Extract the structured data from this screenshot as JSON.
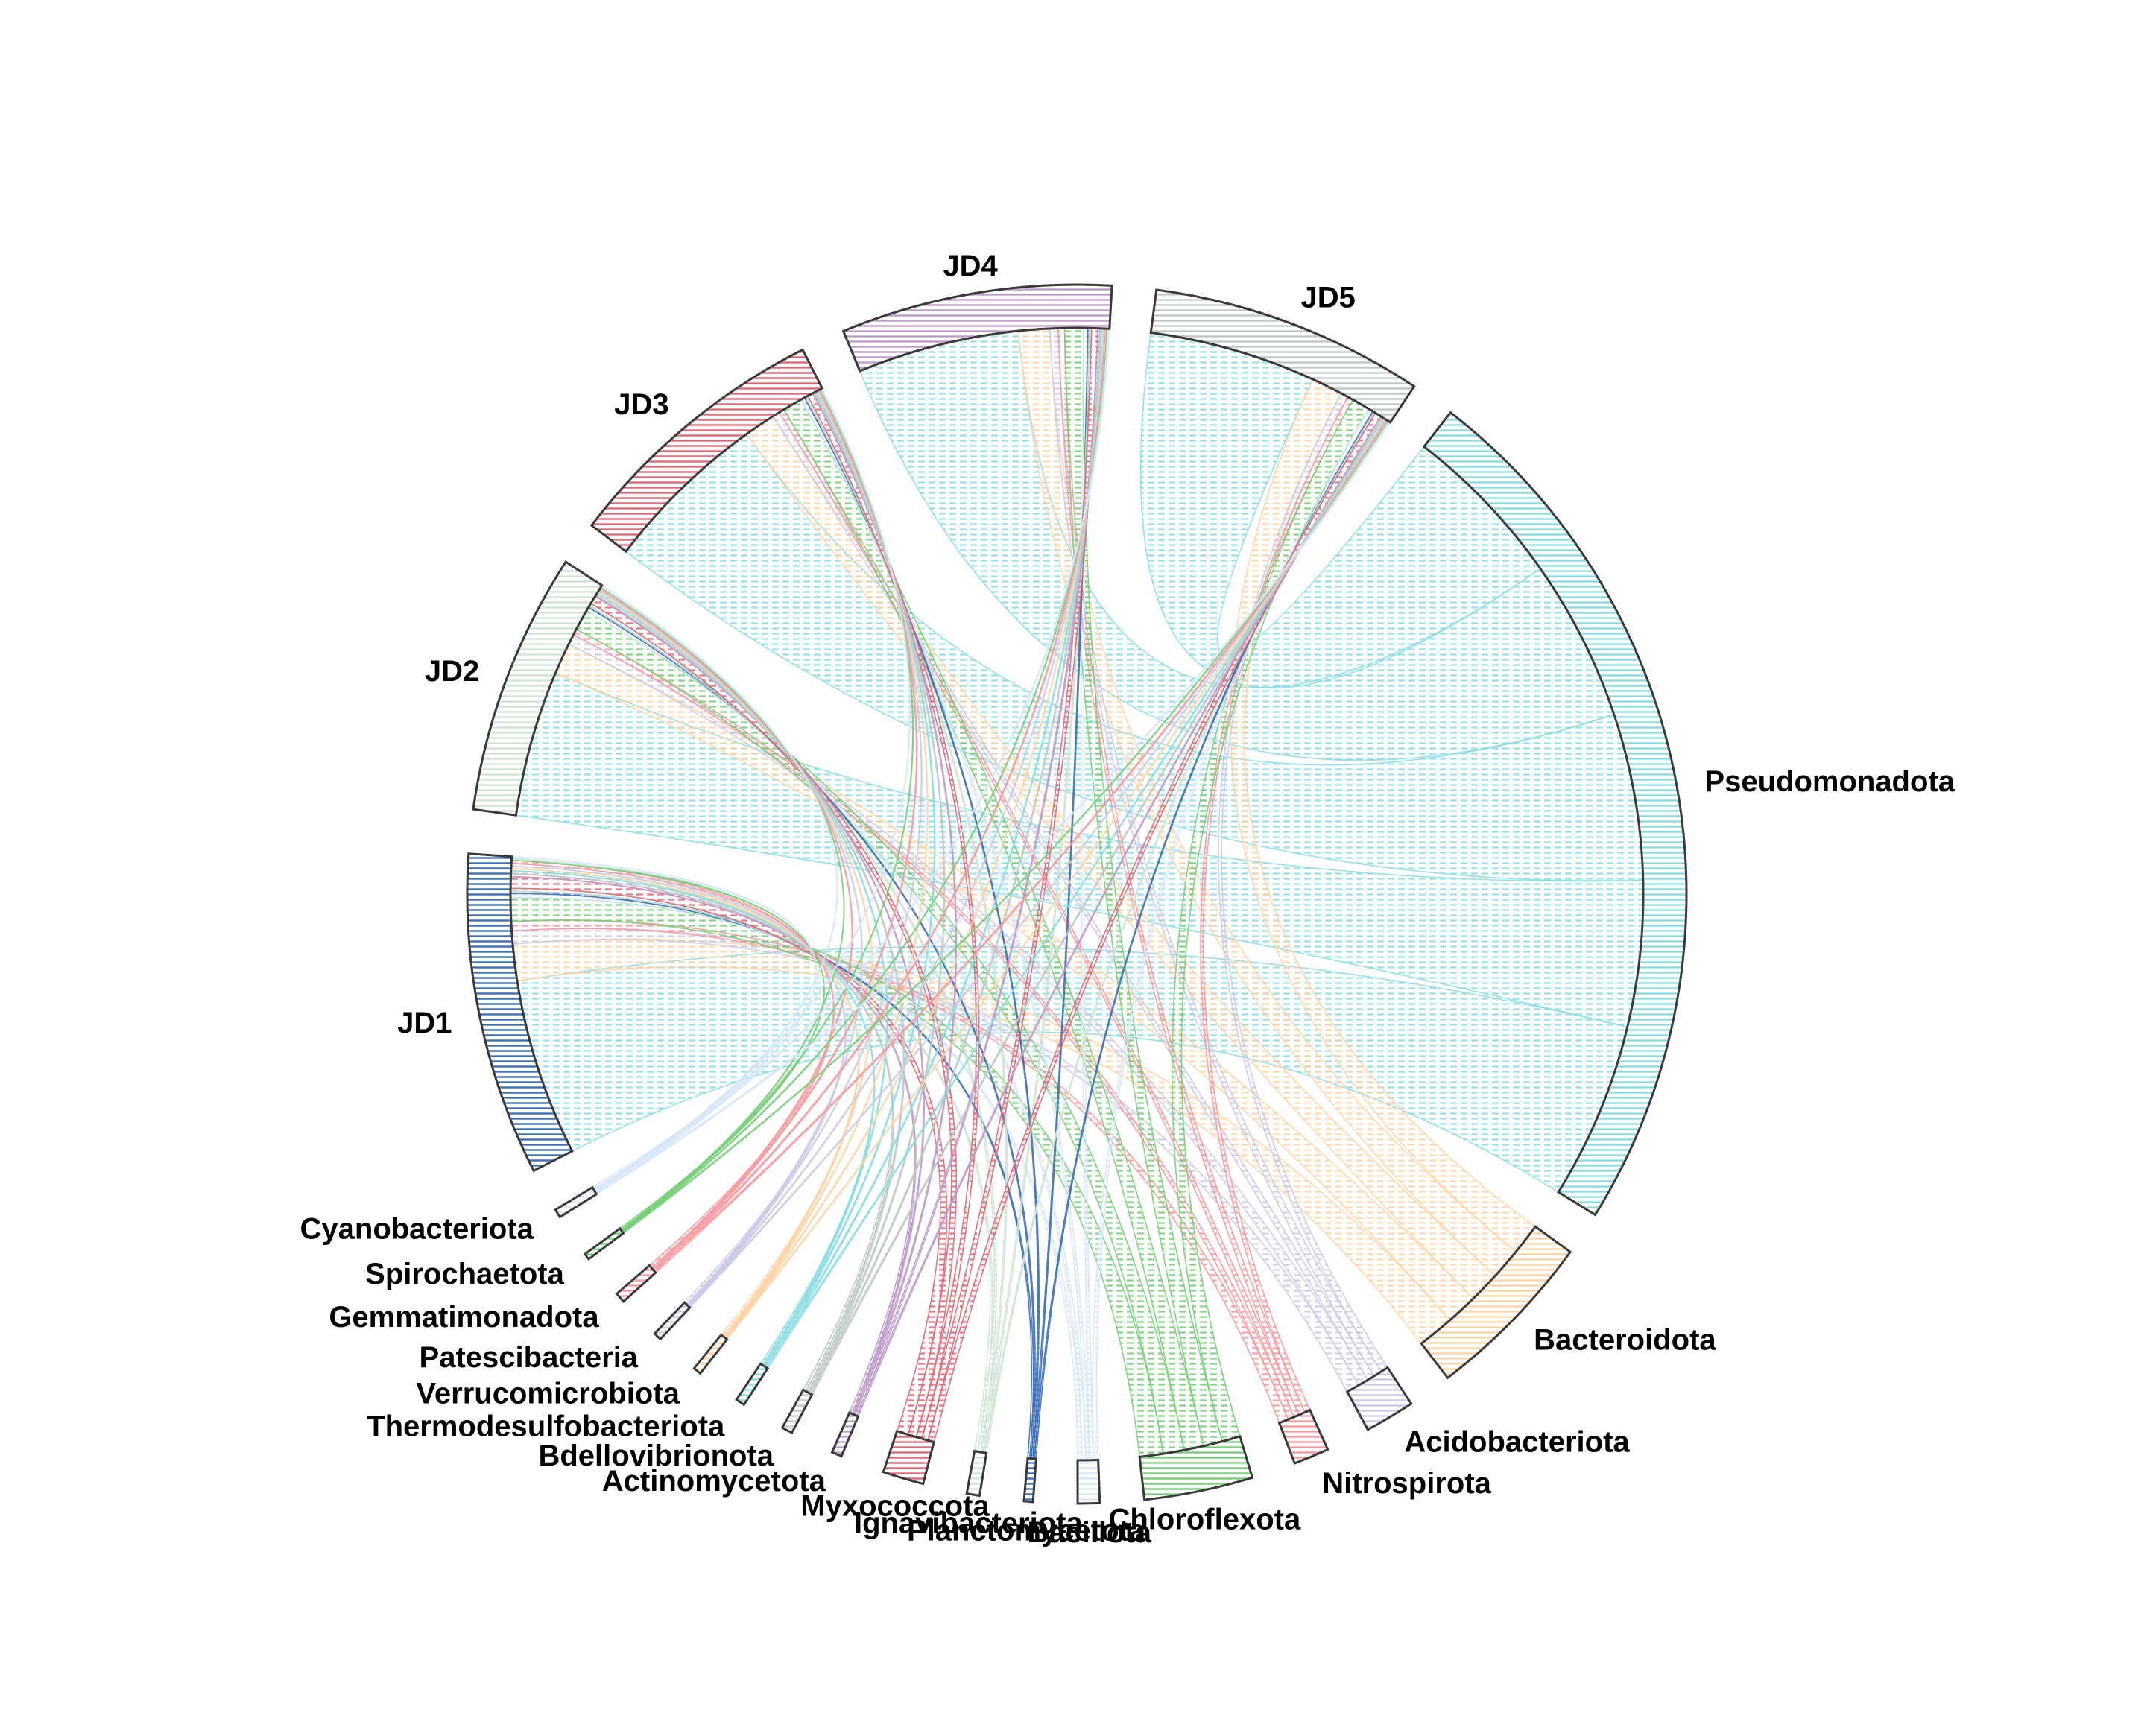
{
  "chart_data": {
    "type": "chord",
    "title": "",
    "samples": [
      {
        "name": "JD1",
        "color": "#3C6FB8"
      },
      {
        "name": "JD2",
        "color": "#CFE4D3"
      },
      {
        "name": "JD3",
        "color": "#DE6878"
      },
      {
        "name": "JD4",
        "color": "#BE9BC9"
      },
      {
        "name": "JD5",
        "color": "#BEC9C5"
      }
    ],
    "phyla": [
      {
        "name": "Pseudomonadota",
        "color": "#8CDDE2"
      },
      {
        "name": "Bacteroidota",
        "color": "#FED4A6"
      },
      {
        "name": "Acidobacteriota",
        "color": "#CACBE4"
      },
      {
        "name": "Nitrospirota",
        "color": "#F7999F"
      },
      {
        "name": "Chloroflexota",
        "color": "#79CE7A"
      },
      {
        "name": "Bacillota",
        "color": "#D6E6F7"
      },
      {
        "name": "Planctomycetota",
        "color": "#3C6FB8"
      },
      {
        "name": "Ignavibacteriota",
        "color": "#CFE4D3"
      },
      {
        "name": "Myxococcota",
        "color": "#DE6878"
      },
      {
        "name": "Actinomycetota",
        "color": "#BE9BC9"
      },
      {
        "name": "Bdellovibrionota",
        "color": "#BEC9C5"
      },
      {
        "name": "Thermodesulfobacteriota",
        "color": "#8CDDE2"
      },
      {
        "name": "Verrucomicrobiota",
        "color": "#FED4A6"
      },
      {
        "name": "Patescibacteria",
        "color": "#CACBE4"
      },
      {
        "name": "Gemmatimonadota",
        "color": "#F7999F"
      },
      {
        "name": "Spirochaetota",
        "color": "#79CE7A"
      },
      {
        "name": "Cyanobacteriota",
        "color": "#D6E6F7"
      }
    ],
    "matrix": [
      [
        34,
        7,
        2.5,
        1.8,
        4.5,
        0.8,
        0.4,
        0.6,
        2.2,
        0.5,
        0.6,
        0.4,
        0.5,
        0.5,
        0.6,
        0.3,
        0.4
      ],
      [
        28,
        6,
        2.0,
        1.2,
        4.0,
        0.7,
        0.3,
        0.6,
        1.6,
        0.3,
        0.4,
        0.3,
        0.3,
        0.3,
        0.3,
        0.2,
        0.3
      ],
      [
        32,
        6,
        1.4,
        1.0,
        3.8,
        0.7,
        0.3,
        0.4,
        1.1,
        0.3,
        0.3,
        0.3,
        0.2,
        0.2,
        0.3,
        0.2,
        0.2
      ],
      [
        31,
        6,
        1.6,
        1.2,
        3.6,
        0.8,
        0.3,
        0.4,
        1.2,
        0.4,
        0.3,
        0.3,
        0.2,
        0.2,
        0.3,
        0.2,
        0.3
      ],
      [
        32,
        6,
        1.4,
        1.1,
        3.5,
        0.9,
        0.3,
        0.3,
        1.2,
        0.3,
        0.3,
        0.3,
        0.2,
        0.2,
        0.3,
        0.2,
        0.3
      ]
    ]
  }
}
